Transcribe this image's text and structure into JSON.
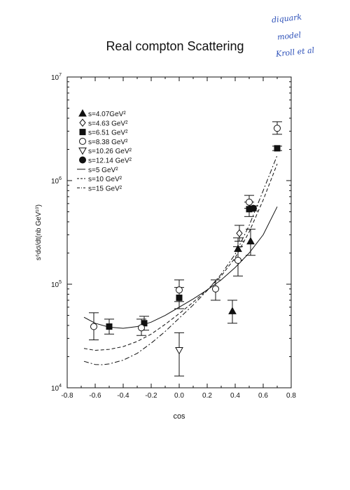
{
  "title": "Real compton Scattering",
  "annotations": [
    "diquark",
    "model",
    "Kroll et al"
  ],
  "chart_data": {
    "type": "scatter",
    "title": "Real compton Scattering",
    "xlabel": "cos",
    "ylabel": "s⁶dσ/dt(nb GeV¹⁰)",
    "xlim": [
      -0.8,
      0.8
    ],
    "ylim": [
      10000,
      10000000
    ],
    "yscale": "log",
    "x_ticks": [
      "-0.8",
      "-0.6",
      "-0.4",
      "-0.2",
      "0.0",
      "0.2",
      "0.4",
      "0.6",
      "0.8"
    ],
    "y_ticks": [
      {
        "value": 10000,
        "base": "10",
        "exp": "4"
      },
      {
        "value": 100000,
        "base": "10",
        "exp": "5"
      },
      {
        "value": 1000000,
        "base": "10",
        "exp": "6"
      },
      {
        "value": 10000000,
        "base": "10",
        "exp": "7"
      }
    ],
    "grid": false,
    "legend_position": "top-left",
    "series": [
      {
        "name": "s=4.07GeV²",
        "marker": "triangle-filled",
        "points": [
          [
            0.38,
            55000,
            42000,
            70000
          ],
          [
            0.42,
            220000,
            170000,
            280000
          ],
          [
            0.51,
            260000,
            190000,
            340000
          ]
        ]
      },
      {
        "name": "s=4.63 GeV²",
        "marker": "diamond-open",
        "points": [
          [
            0.43,
            310000,
            260000,
            370000
          ]
        ]
      },
      {
        "name": "s=6.51 GeV²",
        "marker": "square-filled",
        "points": [
          [
            -0.5,
            39000,
            33000,
            46000
          ],
          [
            -0.25,
            42000,
            36000,
            49000
          ],
          [
            0.0,
            74000,
            58000,
            93000
          ],
          [
            0.5,
            530000,
            450000,
            620000
          ],
          [
            0.7,
            2050000,
            1950000,
            2150000
          ]
        ]
      },
      {
        "name": "s=8.38 GeV²",
        "marker": "circle-open",
        "points": [
          [
            -0.61,
            39000,
            29000,
            53000
          ],
          [
            -0.27,
            38000,
            32000,
            46000
          ],
          [
            0.0,
            88000,
            68000,
            110000
          ],
          [
            0.26,
            90000,
            70000,
            110000
          ],
          [
            0.42,
            170000,
            120000,
            230000
          ],
          [
            0.5,
            620000,
            540000,
            720000
          ],
          [
            0.7,
            3200000,
            2800000,
            3700000
          ]
        ]
      },
      {
        "name": "s=10.26 GeV²",
        "marker": "triangle-open-down",
        "points": [
          [
            0.0,
            23000,
            13000,
            34000
          ]
        ]
      },
      {
        "name": "s=12.14 GeV²",
        "marker": "circle-filled",
        "points": [
          [
            0.53,
            540000,
            510000,
            570000
          ]
        ]
      },
      {
        "name": "s=5 GeV²",
        "marker": "line-solid",
        "points": [
          [
            -0.68,
            48000
          ],
          [
            -0.6,
            42000
          ],
          [
            -0.5,
            38500
          ],
          [
            -0.4,
            37500
          ],
          [
            -0.3,
            39000
          ],
          [
            -0.2,
            43000
          ],
          [
            -0.1,
            50000
          ],
          [
            0.0,
            60000
          ],
          [
            0.1,
            72000
          ],
          [
            0.2,
            88000
          ],
          [
            0.3,
            110000
          ],
          [
            0.4,
            145000
          ],
          [
            0.5,
            200000
          ],
          [
            0.6,
            300000
          ],
          [
            0.7,
            560000
          ]
        ]
      },
      {
        "name": "s=10 GeV²",
        "marker": "line-dashed",
        "points": [
          [
            -0.68,
            24000
          ],
          [
            -0.6,
            23000
          ],
          [
            -0.5,
            23500
          ],
          [
            -0.4,
            25000
          ],
          [
            -0.3,
            28000
          ],
          [
            -0.2,
            33000
          ],
          [
            -0.1,
            41000
          ],
          [
            0.0,
            52000
          ],
          [
            0.1,
            67000
          ],
          [
            0.2,
            88000
          ],
          [
            0.3,
            120000
          ],
          [
            0.4,
            180000
          ],
          [
            0.5,
            320000
          ],
          [
            0.6,
            650000
          ],
          [
            0.7,
            1450000
          ]
        ]
      },
      {
        "name": "s=15 GeV²",
        "marker": "line-dashdot",
        "points": [
          [
            -0.68,
            18000
          ],
          [
            -0.6,
            16800
          ],
          [
            -0.55,
            16700
          ],
          [
            -0.5,
            17000
          ],
          [
            -0.4,
            18500
          ],
          [
            -0.3,
            21500
          ],
          [
            -0.2,
            27000
          ],
          [
            -0.1,
            35000
          ],
          [
            0.0,
            47000
          ],
          [
            0.1,
            63000
          ],
          [
            0.2,
            87000
          ],
          [
            0.3,
            125000
          ],
          [
            0.4,
            195000
          ],
          [
            0.5,
            370000
          ],
          [
            0.6,
            800000
          ],
          [
            0.7,
            1750000
          ]
        ]
      }
    ]
  }
}
